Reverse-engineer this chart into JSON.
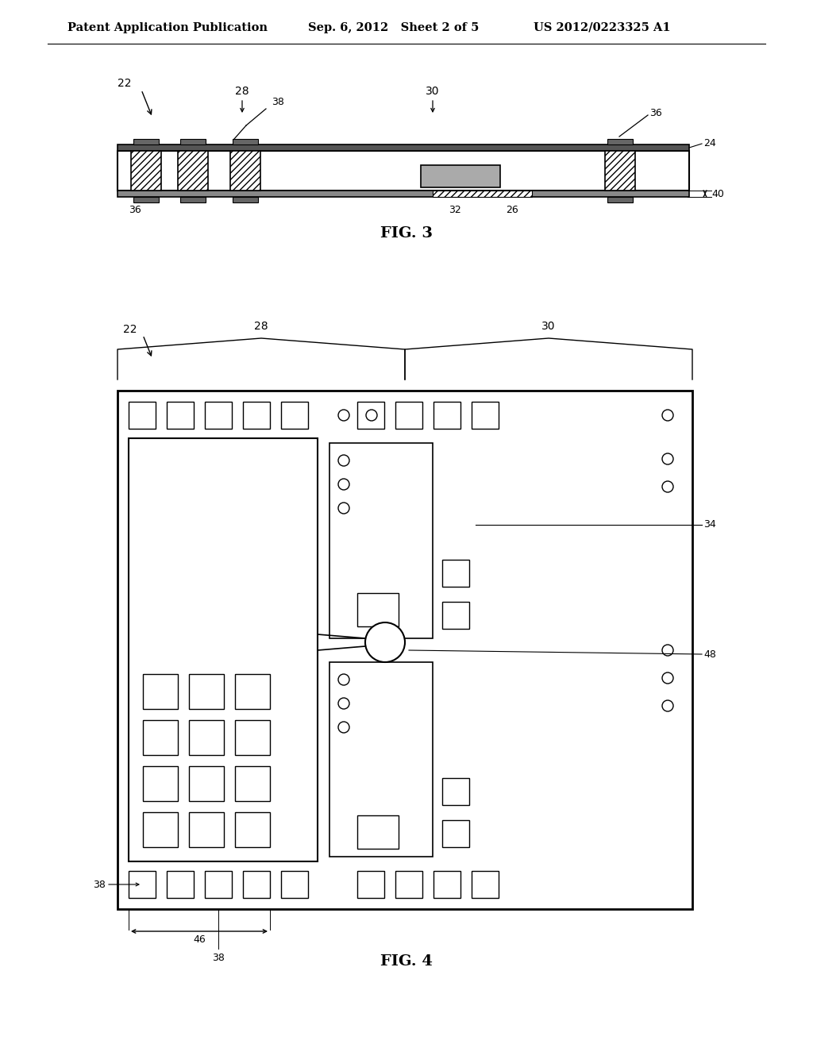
{
  "header_left": "Patent Application Publication",
  "header_mid": "Sep. 6, 2012   Sheet 2 of 5",
  "header_right": "US 2012/0223325 A1",
  "fig3_label": "FIG. 3",
  "fig4_label": "FIG. 4",
  "bg_color": "#ffffff",
  "line_color": "#000000"
}
